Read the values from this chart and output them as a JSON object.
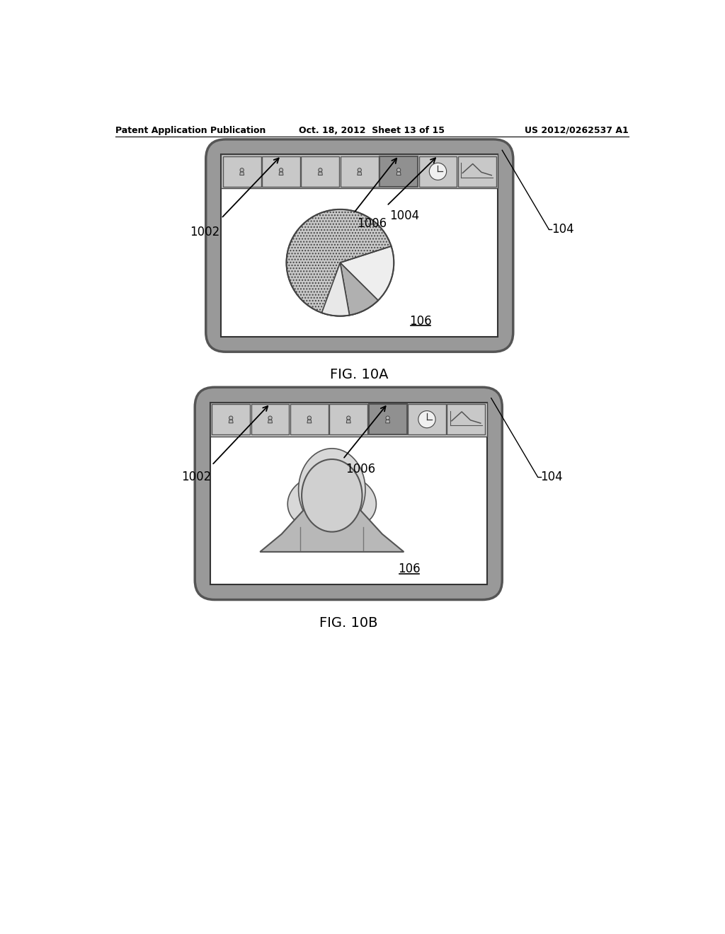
{
  "bg_color": "#ffffff",
  "header_text_left": "Patent Application Publication",
  "header_text_mid": "Oct. 18, 2012  Sheet 13 of 15",
  "header_text_right": "US 2012/0262537 A1",
  "fig_10a_label": "FIG. 10A",
  "fig_10b_label": "FIG. 10B",
  "label_104_a": "104",
  "label_104_b": "104",
  "label_106_a": "106",
  "label_106_b": "106",
  "label_1002_a": "1002",
  "label_1002_b": "1002",
  "label_1004": "1004",
  "label_1006_a": "1006",
  "label_1006_b": "1006",
  "device_gray": "#aaaaaa",
  "device_dark": "#888888",
  "screen_white": "#ffffff",
  "thumb_bar_gray": "#d0d0d0",
  "thumb_cell_gray": "#c8c8c8",
  "thumb_cell_highlight": "#909090",
  "pie_dot_gray": "#c8c8c8",
  "pie_light_gray": "#e8e8e8",
  "pie_mid_gray": "#b0b0b0",
  "hair_gray": "#d8d8d8",
  "face_gray": "#d0d0d0",
  "shoulder_gray": "#b8b8b8",
  "text_color": "#000000",
  "line_color": "#444444"
}
